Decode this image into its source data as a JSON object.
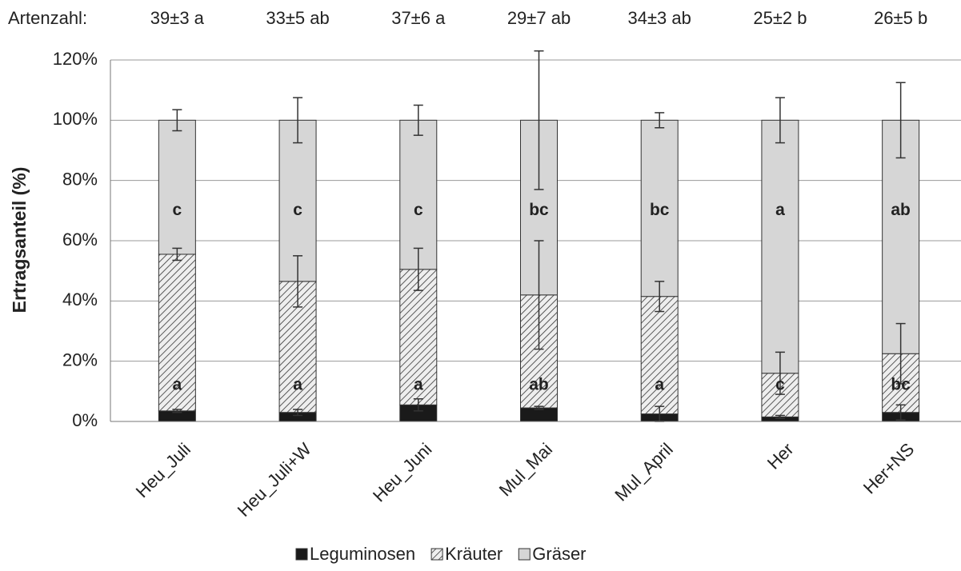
{
  "chart_data": {
    "type": "stacked-bar",
    "y_label": "Ertragsanteil (%)",
    "header": {
      "label": "Artenzahl:",
      "values": [
        "39±3 a",
        "33±5 ab",
        "37±6 a",
        "29±7 ab",
        "34±3 ab",
        "25±2 b",
        "26±5 b"
      ]
    },
    "categories": [
      "Heu_Juli",
      "Heu_Juli+W",
      "Heu_Juni",
      "Mul_Mai",
      "Mul_April",
      "Her",
      "Her+NS"
    ],
    "series": [
      {
        "name": "Leguminosen",
        "color": "#1a1a1a",
        "pattern": "solid",
        "values": [
          3.5,
          3,
          5.5,
          4.5,
          2.5,
          1.5,
          3
        ],
        "errors": [
          0.5,
          1,
          2,
          0.5,
          2.5,
          0.5,
          2.5
        ]
      },
      {
        "name": "Kräuter",
        "color": "#e6e6e6",
        "pattern": "hatch",
        "values": [
          52,
          43.5,
          45,
          37.5,
          39,
          14.5,
          19.5
        ],
        "errors": [
          2,
          8.5,
          7,
          18,
          5,
          7,
          10
        ],
        "letters": [
          "a",
          "a",
          "a",
          "ab",
          "a",
          "c",
          "bc"
        ]
      },
      {
        "name": "Gräser",
        "color": "#d6d6d6",
        "pattern": "solid",
        "values": [
          44.5,
          53.5,
          49.5,
          58,
          58.5,
          84,
          77.5
        ],
        "errors": [
          3.5,
          7.5,
          5,
          23,
          2.5,
          7.5,
          12.5
        ],
        "letters": [
          "c",
          "c",
          "c",
          "bc",
          "bc",
          "a",
          "ab"
        ]
      }
    ],
    "ylim": [
      0,
      120
    ],
    "yticks": [
      {
        "value": 0,
        "label": "0%"
      },
      {
        "value": 20,
        "label": "20%"
      },
      {
        "value": 40,
        "label": "40%"
      },
      {
        "value": 60,
        "label": "60%"
      },
      {
        "value": 80,
        "label": "80%"
      },
      {
        "value": 100,
        "label": "100%"
      },
      {
        "value": 120,
        "label": "120%"
      }
    ],
    "grid": true
  }
}
